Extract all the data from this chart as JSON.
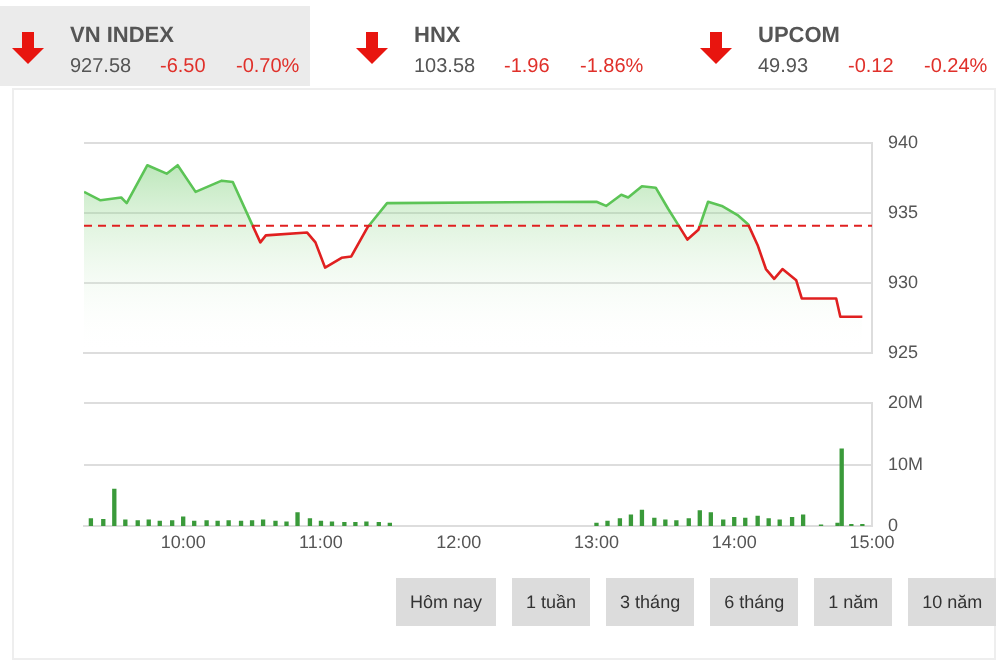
{
  "chart_data": [
    {
      "type": "other",
      "annotations": [
        "VN INDEX",
        "927.58",
        "-6.50",
        "-0.70%",
        "HNX",
        "103.58",
        "-1.96",
        "-1.86%",
        "UPCOM",
        "49.93",
        "-0.12",
        "-0.24%"
      ]
    },
    {
      "type": "area",
      "x": [
        9.28,
        9.4,
        9.55,
        9.59,
        9.74,
        9.88,
        9.96,
        10.09,
        10.28,
        10.36,
        10.49,
        10.56,
        10.6,
        10.9,
        10.96,
        11.03,
        11.15,
        11.22,
        11.34,
        11.48,
        11.5,
        13.0,
        13.07,
        13.18,
        13.23,
        13.33,
        13.43,
        13.52,
        13.59,
        13.66,
        13.74,
        13.81,
        13.91,
        14.03,
        14.1,
        14.17,
        14.23,
        14.29,
        14.35,
        14.45,
        14.49,
        14.74,
        14.77,
        14.93
      ],
      "series": [
        {
          "color": "#5cc456",
          "values": [
            936.5,
            935.9,
            936.1,
            935.7,
            938.4,
            937.8,
            938.4,
            936.5,
            937.3,
            937.2,
            934.4,
            932.9,
            933.4,
            933.6,
            932.9,
            931.1,
            931.8,
            931.9,
            934.0,
            935.7,
            935.7,
            935.8,
            935.5,
            936.3,
            936.1,
            936.9,
            936.8,
            935.3,
            934.2,
            933.1,
            933.8,
            935.8,
            935.5,
            934.8,
            934.2,
            932.7,
            931.0,
            930.3,
            931.0,
            930.2,
            928.9,
            928.9,
            927.6,
            927.6
          ]
        }
      ],
      "xlim": [
        9.28,
        15
      ],
      "ylim": [
        925,
        940
      ],
      "yticks": [
        925,
        930,
        935,
        940
      ],
      "tick_labels": "y",
      "grid": "y",
      "ref_lines": [
        {
          "axis": "y",
          "value": 934.08,
          "color": "#e02020",
          "line_style": "dashed"
        }
      ]
    },
    {
      "type": "bar",
      "x": [
        9.33,
        9.42,
        9.5,
        9.58,
        9.67,
        9.75,
        9.83,
        9.92,
        10,
        10.08,
        10.17,
        10.25,
        10.33,
        10.42,
        10.5,
        10.58,
        10.67,
        10.75,
        10.83,
        10.92,
        11,
        11.08,
        11.17,
        11.25,
        11.33,
        11.42,
        11.5,
        13,
        13.08,
        13.17,
        13.25,
        13.33,
        13.42,
        13.5,
        13.58,
        13.67,
        13.75,
        13.83,
        13.92,
        14,
        14.08,
        14.17,
        14.25,
        14.33,
        14.42,
        14.5,
        14.63,
        14.75,
        14.78,
        14.85,
        14.93
      ],
      "values": [
        1.2,
        1.1,
        6,
        1,
        0.9,
        1,
        0.8,
        0.9,
        1.5,
        0.8,
        0.9,
        0.8,
        0.9,
        0.8,
        0.9,
        1,
        0.8,
        0.7,
        2.2,
        1.2,
        0.8,
        0.7,
        0.6,
        0.6,
        0.7,
        0.6,
        0.5,
        0.5,
        0.8,
        1.2,
        1.8,
        2.6,
        1.3,
        1,
        0.9,
        1.2,
        2.5,
        2.2,
        1,
        1.4,
        1.3,
        1.6,
        1.2,
        1,
        1.4,
        1.8,
        0.2,
        0.5,
        12.5,
        0.3,
        0.3
      ],
      "color": "#3a9a3a",
      "xlim": [
        9.28,
        15
      ],
      "xticks": [
        {
          "value": 10,
          "label": "10:00"
        },
        {
          "value": 11,
          "label": "11:00"
        },
        {
          "value": 12,
          "label": "12:00"
        },
        {
          "value": 13,
          "label": "13:00"
        },
        {
          "value": 14,
          "label": "14:00"
        },
        {
          "value": 15,
          "label": "15:00"
        }
      ],
      "ylim": [
        0,
        20
      ],
      "yticks": [
        0,
        {
          "value": 10,
          "label": "10M"
        },
        {
          "value": 20,
          "label": "20M"
        }
      ],
      "grid": "y"
    },
    {
      "type": "other",
      "annotations": [
        "Hôm nay",
        "1 tuần",
        "3 tháng",
        "6 tháng",
        "1 năm",
        "10 năm"
      ]
    }
  ]
}
